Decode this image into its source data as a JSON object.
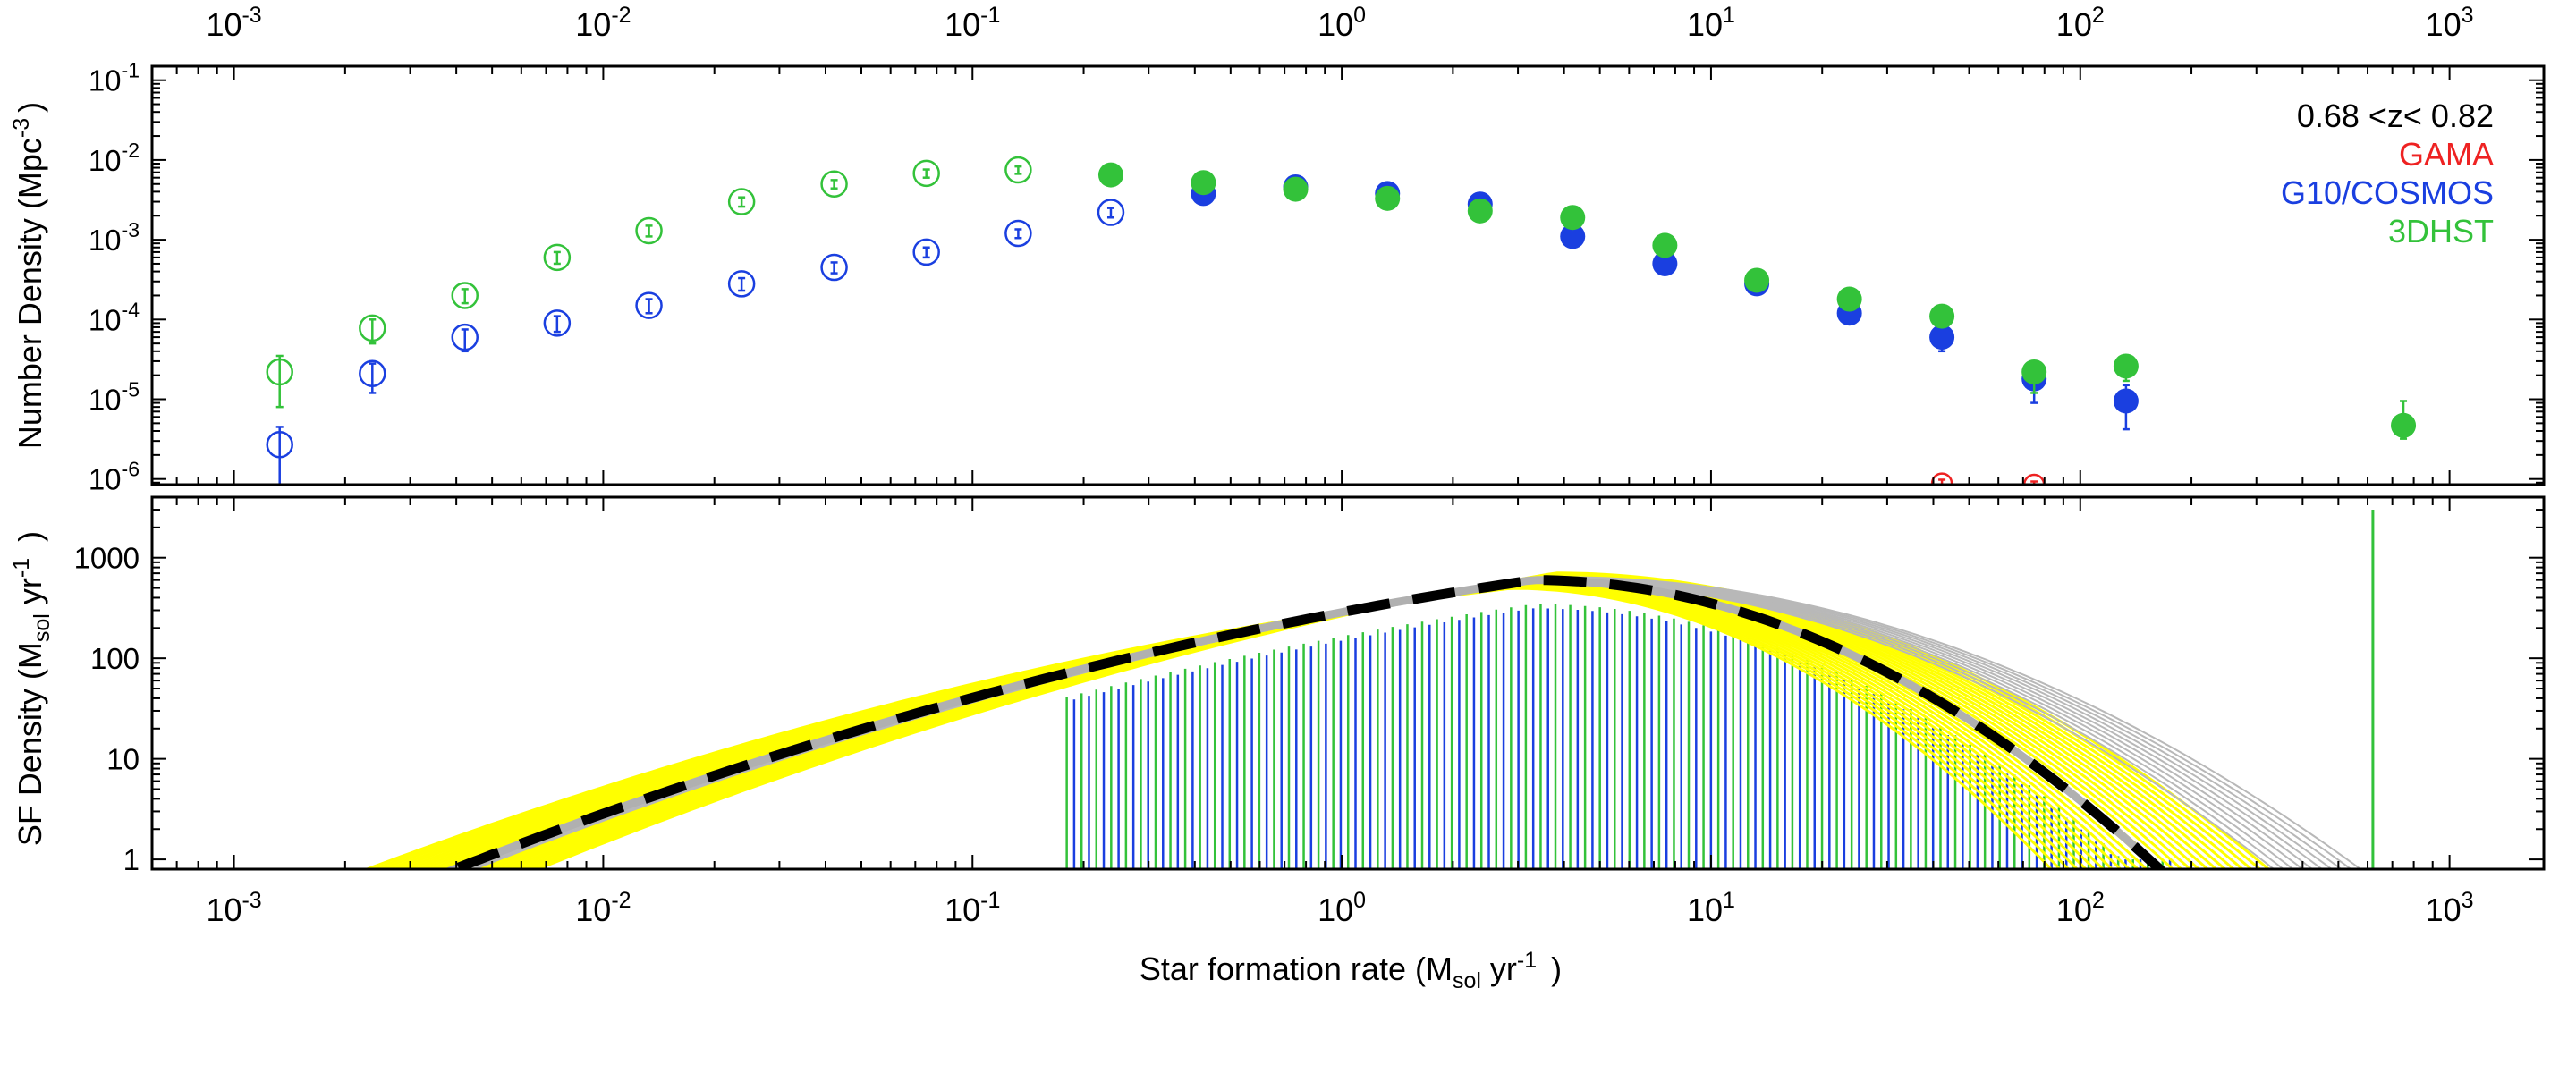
{
  "chart_data": [
    {
      "panel": "top",
      "type": "scatter",
      "x_scale": "log",
      "y_scale": "log",
      "xlim": [
        0.0006,
        1800
      ],
      "ylim": [
        8.5e-07,
        0.15
      ],
      "ylabel": "Number Density (Mpc",
      "ylabel_sup": "-3",
      "ylabel_end": ")",
      "redshift_label": "0.68 <z< 0.82",
      "top_axis_ticks": [
        {
          "value": 0.001,
          "base": "10",
          "exp": "-3"
        },
        {
          "value": 0.01,
          "base": "10",
          "exp": "-2"
        },
        {
          "value": 0.1,
          "base": "10",
          "exp": "-1"
        },
        {
          "value": 1,
          "base": "10",
          "exp": "0"
        },
        {
          "value": 10,
          "base": "10",
          "exp": "1"
        },
        {
          "value": 100,
          "base": "10",
          "exp": "2"
        },
        {
          "value": 1000,
          "base": "10",
          "exp": "3"
        }
      ],
      "y_ticks": [
        {
          "value": 1e-06,
          "base": "10",
          "exp": "-6"
        },
        {
          "value": 1e-05,
          "base": "10",
          "exp": "-5"
        },
        {
          "value": 0.0001,
          "base": "10",
          "exp": "-4"
        },
        {
          "value": 0.001,
          "base": "10",
          "exp": "-3"
        },
        {
          "value": 0.01,
          "base": "10",
          "exp": "-2"
        },
        {
          "value": 0.1,
          "base": "10",
          "exp": "-1"
        }
      ],
      "legend": [
        {
          "name": "GAMA",
          "color": "#ee2222"
        },
        {
          "name": "G10/COSMOS",
          "color": "#1a3fe0"
        },
        {
          "name": "3DHST",
          "color": "#33c23a"
        }
      ],
      "series": [
        {
          "name": "G10/COSMOS",
          "color": "#1a3fe0",
          "points": [
            {
              "x": 0.00133,
              "y": 2.7e-06,
              "lo": 8e-07,
              "hi": 4.5e-06,
              "filled": false
            },
            {
              "x": 0.00237,
              "y": 2.1e-05,
              "lo": 1.2e-05,
              "hi": 2.8e-05,
              "filled": false
            },
            {
              "x": 0.00422,
              "y": 6e-05,
              "lo": 4e-05,
              "hi": 7.5e-05,
              "filled": false
            },
            {
              "x": 0.0075,
              "y": 9e-05,
              "lo": 7e-05,
              "hi": 0.00011,
              "filled": false
            },
            {
              "x": 0.0133,
              "y": 0.00015,
              "lo": 0.00012,
              "hi": 0.00018,
              "filled": false
            },
            {
              "x": 0.0237,
              "y": 0.00028,
              "lo": 0.00023,
              "hi": 0.00033,
              "filled": false
            },
            {
              "x": 0.0422,
              "y": 0.00045,
              "lo": 0.00038,
              "hi": 0.00052,
              "filled": false
            },
            {
              "x": 0.075,
              "y": 0.0007,
              "lo": 0.0006,
              "hi": 0.0008,
              "filled": false
            },
            {
              "x": 0.133,
              "y": 0.0012,
              "lo": 0.00105,
              "hi": 0.00135,
              "filled": false
            },
            {
              "x": 0.237,
              "y": 0.0022,
              "lo": 0.0019,
              "hi": 0.0025,
              "filled": false
            },
            {
              "x": 0.422,
              "y": 0.0038,
              "filled": true
            },
            {
              "x": 0.75,
              "y": 0.0046,
              "filled": true
            },
            {
              "x": 1.33,
              "y": 0.0038,
              "filled": true
            },
            {
              "x": 2.37,
              "y": 0.0028,
              "filled": true
            },
            {
              "x": 4.22,
              "y": 0.0011,
              "filled": true
            },
            {
              "x": 7.5,
              "y": 0.0005,
              "filled": true
            },
            {
              "x": 13.3,
              "y": 0.00028,
              "filled": true
            },
            {
              "x": 23.7,
              "y": 0.00012,
              "filled": true
            },
            {
              "x": 42.2,
              "y": 6e-05,
              "lo": 4e-05,
              "hi": 7e-05,
              "filled": true
            },
            {
              "x": 75,
              "y": 1.8e-05,
              "lo": 9e-06,
              "hi": 2.6e-05,
              "filled": true
            },
            {
              "x": 133,
              "y": 9.5e-06,
              "lo": 4.2e-06,
              "hi": 1.5e-05,
              "filled": true
            }
          ]
        },
        {
          "name": "3DHST",
          "color": "#33c23a",
          "points": [
            {
              "x": 0.00133,
              "y": 2.2e-05,
              "lo": 8e-06,
              "hi": 3.5e-05,
              "filled": false
            },
            {
              "x": 0.00237,
              "y": 7.8e-05,
              "lo": 5e-05,
              "hi": 0.0001,
              "filled": false
            },
            {
              "x": 0.00422,
              "y": 0.0002,
              "lo": 0.00016,
              "hi": 0.00024,
              "filled": false
            },
            {
              "x": 0.0075,
              "y": 0.0006,
              "lo": 0.0005,
              "hi": 0.0007,
              "filled": false
            },
            {
              "x": 0.0133,
              "y": 0.0013,
              "lo": 0.0011,
              "hi": 0.0015,
              "filled": false
            },
            {
              "x": 0.0237,
              "y": 0.003,
              "lo": 0.0026,
              "hi": 0.0034,
              "filled": false
            },
            {
              "x": 0.0422,
              "y": 0.005,
              "lo": 0.0044,
              "hi": 0.0056,
              "filled": false
            },
            {
              "x": 0.075,
              "y": 0.0068,
              "lo": 0.006,
              "hi": 0.0076,
              "filled": false
            },
            {
              "x": 0.133,
              "y": 0.0075,
              "lo": 0.0067,
              "hi": 0.0083,
              "filled": false
            },
            {
              "x": 0.237,
              "y": 0.0065,
              "filled": true
            },
            {
              "x": 0.422,
              "y": 0.0052,
              "filled": true
            },
            {
              "x": 0.75,
              "y": 0.0043,
              "filled": true
            },
            {
              "x": 1.33,
              "y": 0.0033,
              "filled": true
            },
            {
              "x": 2.37,
              "y": 0.0023,
              "filled": true
            },
            {
              "x": 4.22,
              "y": 0.0019,
              "filled": true
            },
            {
              "x": 7.5,
              "y": 0.00085,
              "filled": true
            },
            {
              "x": 13.3,
              "y": 0.00031,
              "filled": true
            },
            {
              "x": 23.7,
              "y": 0.00018,
              "filled": true
            },
            {
              "x": 42.2,
              "y": 0.00011,
              "filled": true
            },
            {
              "x": 75,
              "y": 2.2e-05,
              "lo": 1.2e-05,
              "hi": 3e-05,
              "filled": true
            },
            {
              "x": 133,
              "y": 2.6e-05,
              "lo": 1.7e-05,
              "hi": 3.4e-05,
              "filled": true
            },
            {
              "x": 750,
              "y": 4.7e-06,
              "lo": 3.2e-06,
              "hi": 9.5e-06,
              "filled": true
            }
          ]
        },
        {
          "name": "GAMA",
          "color": "#ee2222",
          "points": [
            {
              "x": 42.2,
              "y": 8.8e-07,
              "lo": 7e-07,
              "hi": 9.8e-07,
              "filled": false
            },
            {
              "x": 75,
              "y": 8.5e-07,
              "lo": 7e-07,
              "hi": 9.3e-07,
              "filled": false
            }
          ]
        }
      ]
    },
    {
      "panel": "bottom",
      "type": "line",
      "x_scale": "log",
      "y_scale": "log",
      "xlim": [
        0.0006,
        1800
      ],
      "ylim": [
        0.8,
        4000
      ],
      "ylabel": "SF Density (M",
      "ylabel_sub": "sol",
      "ylabel_mid": " yr",
      "ylabel_sup": "-1",
      "ylabel_end": " )",
      "y_ticks": [
        {
          "value": 1,
          "label": "1"
        },
        {
          "value": 10,
          "label": "10"
        },
        {
          "value": 100,
          "label": "100"
        },
        {
          "value": 1000,
          "label": "1000"
        }
      ],
      "x_ticks": [
        {
          "value": 0.001,
          "base": "10",
          "exp": "-3"
        },
        {
          "value": 0.01,
          "base": "10",
          "exp": "-2"
        },
        {
          "value": 0.1,
          "base": "10",
          "exp": "-1"
        },
        {
          "value": 1,
          "base": "10",
          "exp": "0"
        },
        {
          "value": 10,
          "base": "10",
          "exp": "1"
        },
        {
          "value": 100,
          "base": "10",
          "exp": "2"
        },
        {
          "value": 1000,
          "base": "10",
          "exp": "3"
        }
      ],
      "xlabel": "Star formation rate (M",
      "xlabel_sub": "sol",
      "xlabel_mid": " yr",
      "xlabel_sup": "-1",
      "xlabel_end": " )",
      "best_fit": {
        "peak_x": 3.3,
        "peak_y": 600,
        "slope_low": 0.54,
        "width_high": 1.0,
        "color": "#000000",
        "style": "dashed"
      },
      "mc_curves_color": "#ffff00",
      "mc_curves_high_color": "#b8b8b8",
      "bars_green_color": "#33c23a",
      "bars_blue_color": "#1a3fe0",
      "bars_range": [
        0.18,
        175
      ],
      "outlier_bar": {
        "x": 620,
        "y": 3000
      }
    }
  ]
}
